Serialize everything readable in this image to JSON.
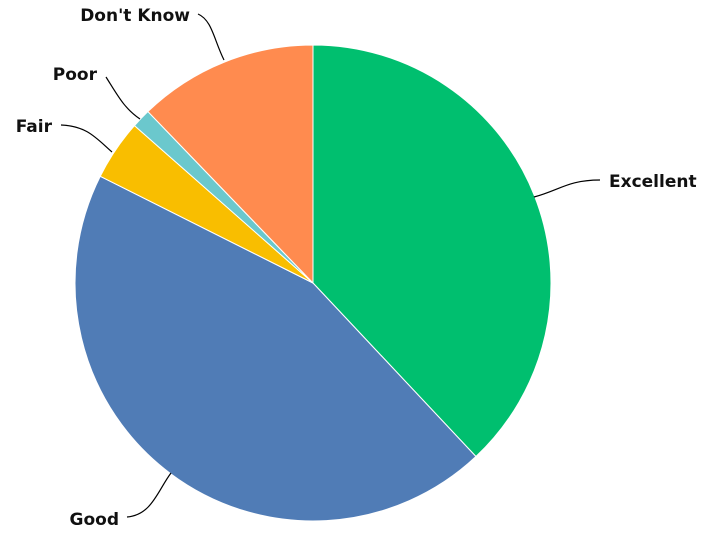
{
  "chart_data": {
    "type": "pie",
    "slices": [
      {
        "label": "Excellent",
        "value": 38.0,
        "color": "#00BF6F"
      },
      {
        "label": "Good",
        "value": 44.4,
        "color": "#507CB6"
      },
      {
        "label": "Fair",
        "value": 4.1,
        "color": "#F9BE00"
      },
      {
        "label": "Poor",
        "value": 1.3,
        "color": "#6BC8CD"
      },
      {
        "label": "Don't Know",
        "value": 12.2,
        "color": "#FF8B4F"
      }
    ],
    "start_angle": "12 o'clock",
    "direction": "clockwise",
    "legend": "none"
  }
}
